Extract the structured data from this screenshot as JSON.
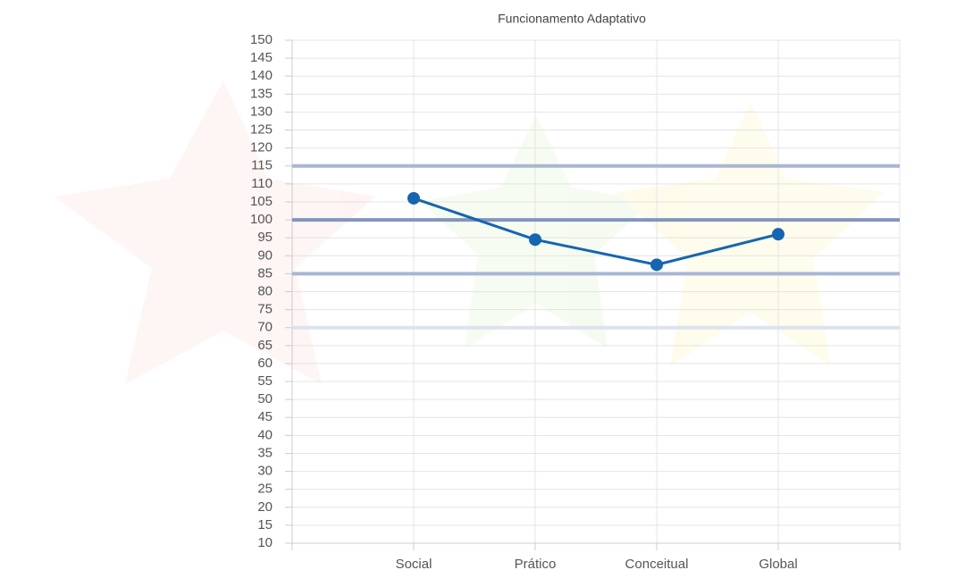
{
  "chart_data": {
    "type": "line",
    "title": "Funcionamento Adaptativo",
    "categories": [
      null,
      "Social",
      "Prático",
      "Conceitual",
      "Global",
      null
    ],
    "values": [
      null,
      106,
      94.5,
      87.5,
      96,
      null
    ],
    "color": "#1565b0",
    "ylim": [
      10,
      150
    ],
    "yticks": [
      10,
      15,
      20,
      25,
      30,
      35,
      40,
      45,
      50,
      55,
      60,
      65,
      70,
      75,
      80,
      85,
      90,
      95,
      100,
      105,
      110,
      115,
      120,
      125,
      130,
      135,
      140,
      145,
      150
    ],
    "grid": true,
    "reference_lines": [
      {
        "value": 115,
        "color": "#a9b6d3"
      },
      {
        "value": 100,
        "color": "#8495bb"
      },
      {
        "value": 85,
        "color": "#a9b6d3"
      },
      {
        "value": 70,
        "color": "#dde2ee"
      }
    ]
  }
}
